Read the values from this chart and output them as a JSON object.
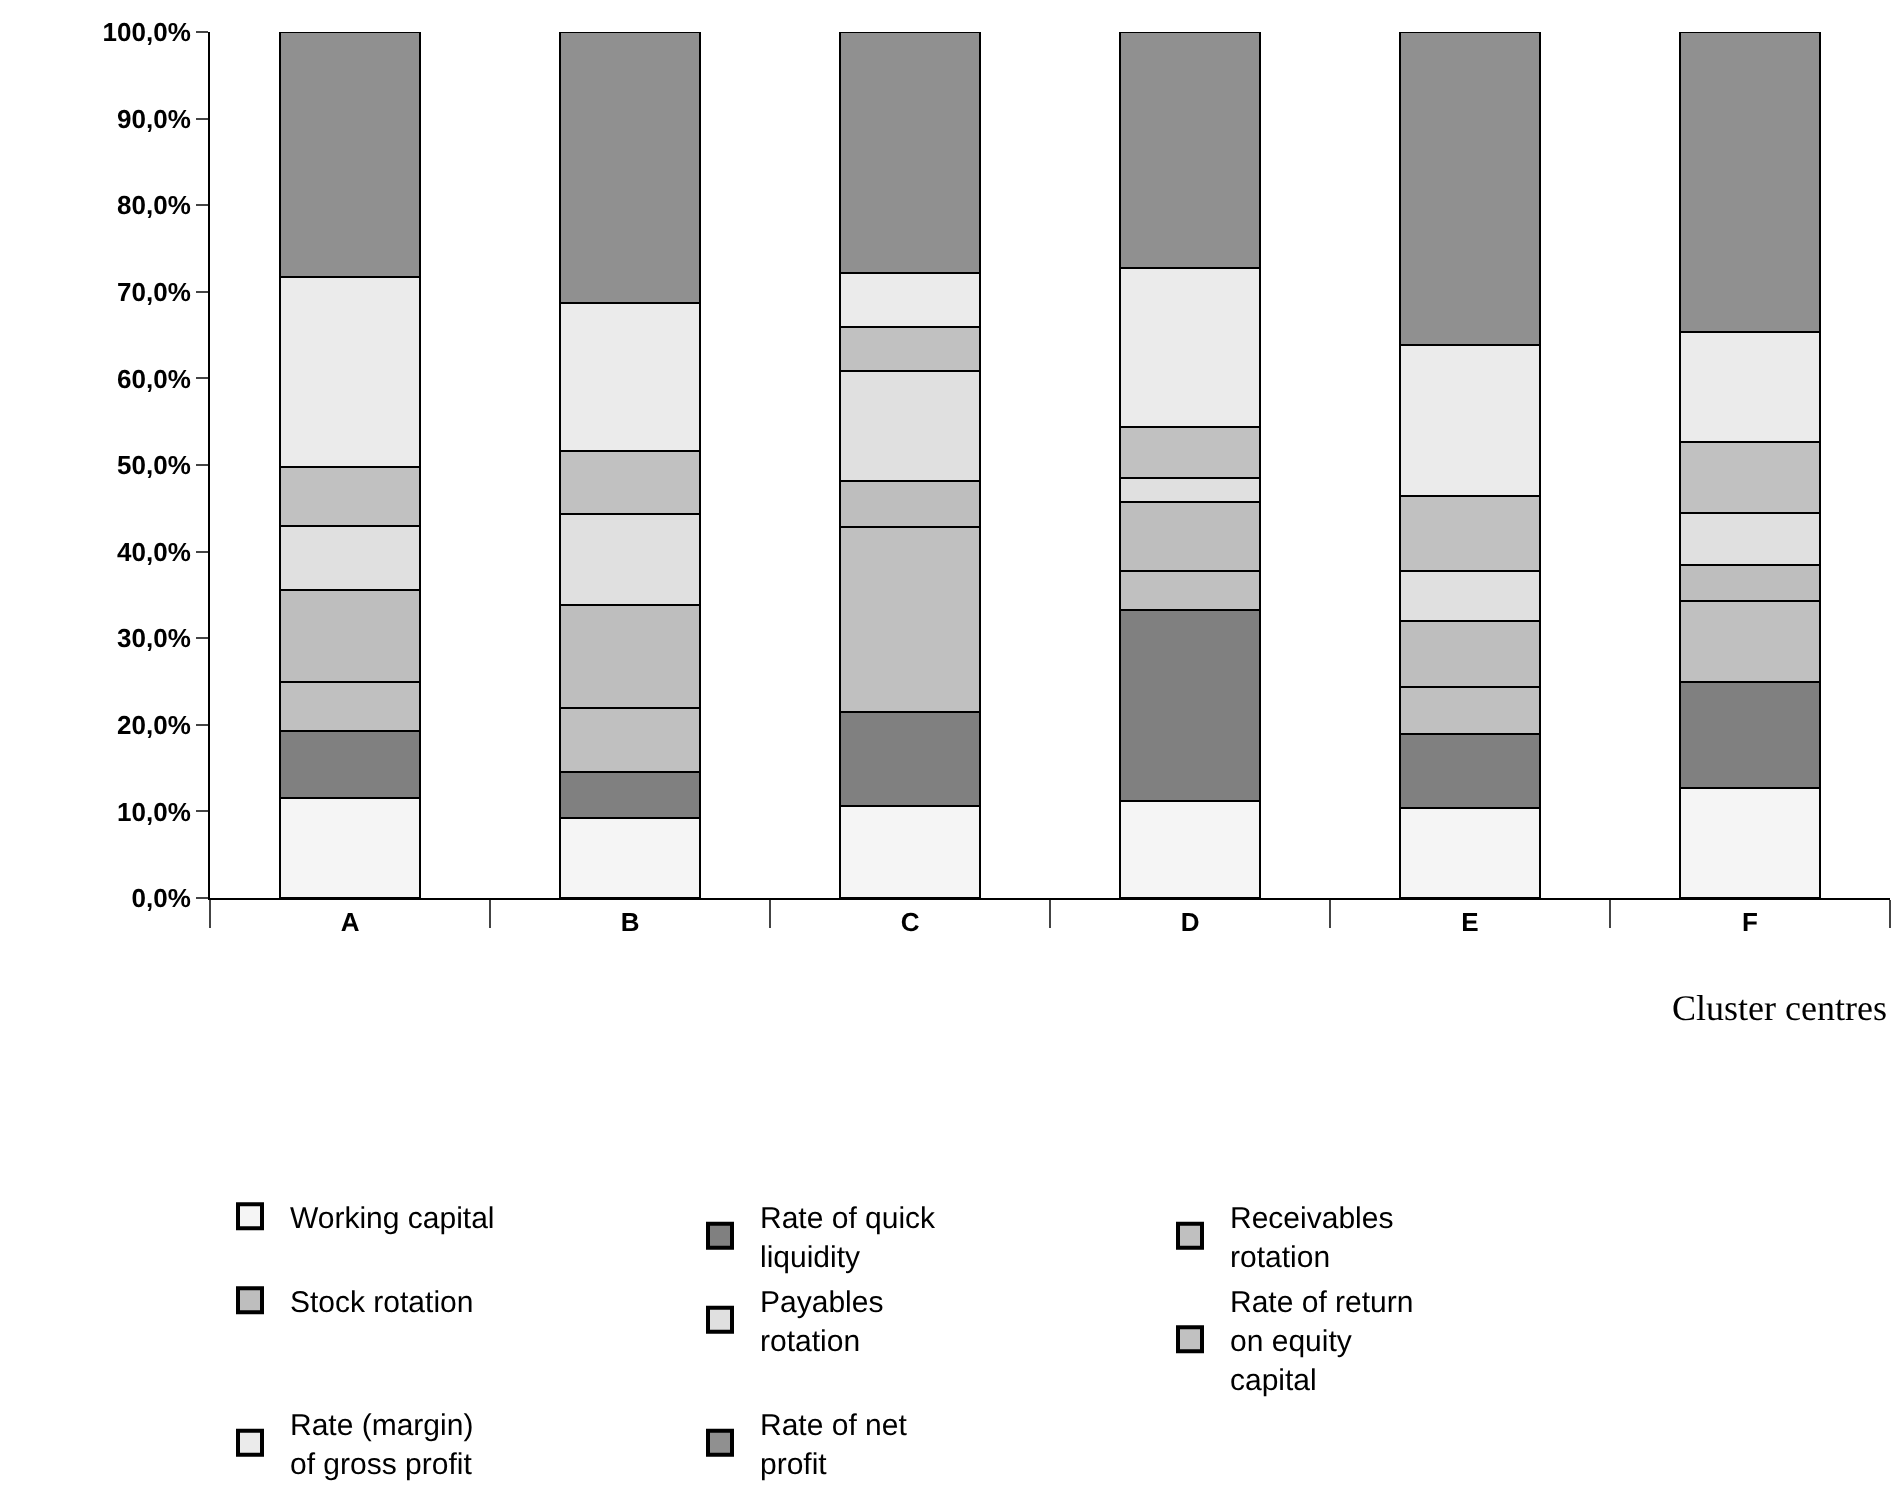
{
  "chart_data": {
    "type": "bar",
    "stacked": true,
    "xlabel": "Cluster centres",
    "categories": [
      "A",
      "B",
      "C",
      "D",
      "E",
      "F"
    ],
    "series": [
      {
        "name": "Working capital",
        "color": "#f5f5f5",
        "values": [
          11.6,
          9.2,
          10.6,
          11.2,
          10.4,
          12.7
        ]
      },
      {
        "name": "Rate of quick liquidity",
        "color": "#808080",
        "values": [
          7.7,
          5.3,
          10.9,
          22.0,
          8.5,
          12.3
        ]
      },
      {
        "name": "Receivables rotation",
        "color": "#c0c0c0",
        "values": [
          5.6,
          7.4,
          21.3,
          4.6,
          5.5,
          9.3
        ]
      },
      {
        "name": "Stock rotation",
        "color": "#bebebe",
        "values": [
          10.7,
          11.9,
          5.4,
          7.9,
          7.6,
          4.1
        ]
      },
      {
        "name": "Payables rotation",
        "color": "#e0e0e0",
        "values": [
          7.3,
          10.6,
          12.7,
          2.8,
          5.8,
          6.1
        ]
      },
      {
        "name": "Rate of return on equity capital",
        "color": "#c1c1c1",
        "values": [
          6.9,
          7.2,
          5.0,
          5.9,
          8.6,
          8.2
        ]
      },
      {
        "name": "Rate (margin) of gross profit",
        "color": "#ebebeb",
        "values": [
          21.9,
          17.1,
          6.3,
          18.4,
          17.5,
          12.7
        ]
      },
      {
        "name": "Rate of net profit",
        "color": "#909090",
        "values": [
          28.3,
          31.3,
          27.8,
          27.2,
          36.1,
          34.6
        ]
      }
    ],
    "ylim": [
      0,
      100
    ],
    "yticks": [
      {
        "value": 0,
        "label": "0,0%"
      },
      {
        "value": 10,
        "label": "10,0%"
      },
      {
        "value": 20,
        "label": "20,0%"
      },
      {
        "value": 30,
        "label": "30,0%"
      },
      {
        "value": 40,
        "label": "40,0%"
      },
      {
        "value": 50,
        "label": "50,0%"
      },
      {
        "value": 60,
        "label": "60,0%"
      },
      {
        "value": 70,
        "label": "70,0%"
      },
      {
        "value": 80,
        "label": "80,0%"
      },
      {
        "value": 90,
        "label": "90,0%"
      },
      {
        "value": 100,
        "label": "100,0%"
      }
    ],
    "grid": false,
    "legend": "bottom"
  }
}
